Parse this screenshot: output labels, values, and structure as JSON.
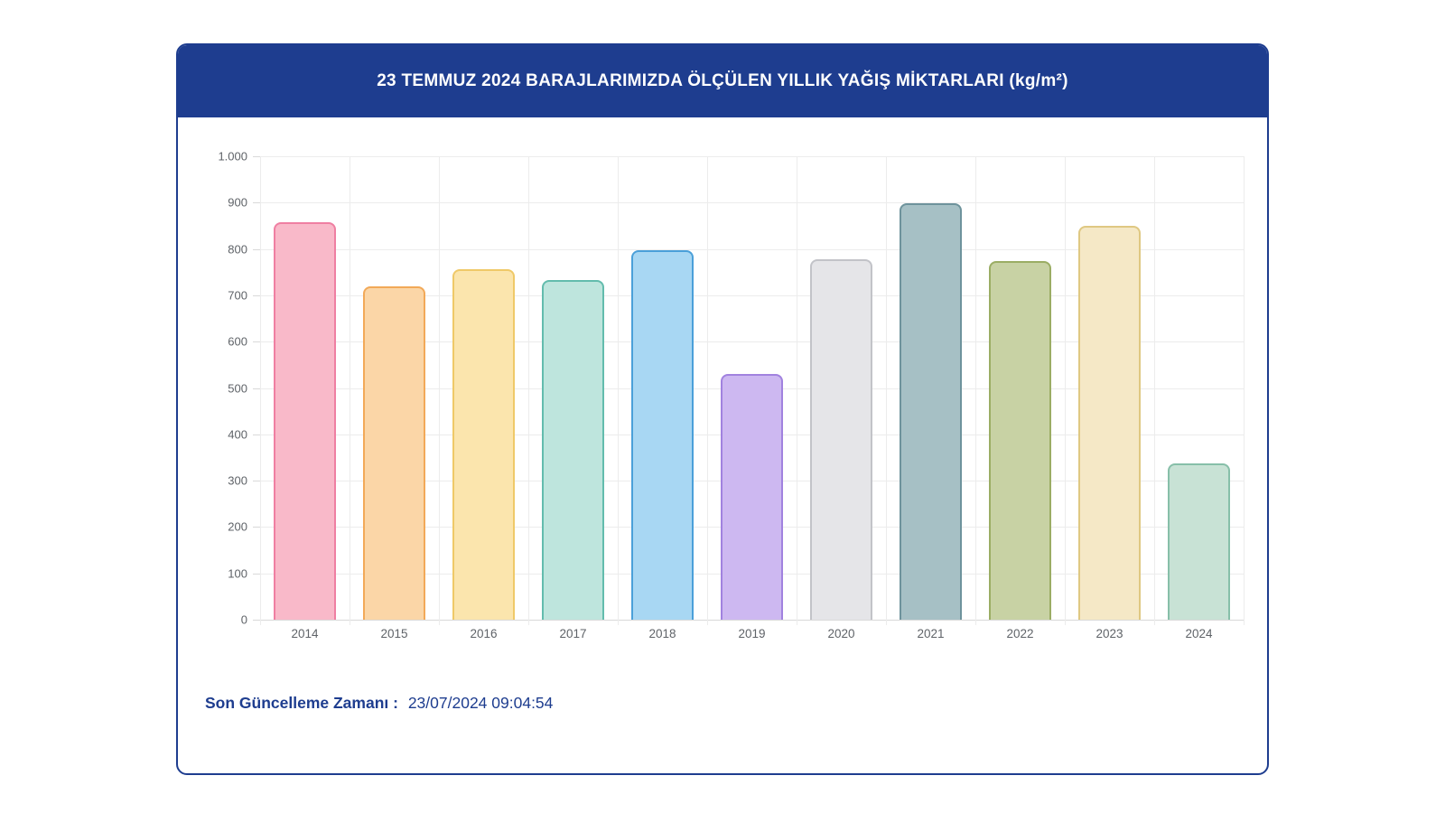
{
  "page": {
    "background": "#ffffff"
  },
  "card": {
    "title": "23 TEMMUZ 2024 BARAJLARIMIZDA ÖLÇÜLEN YILLIK YAĞIŞ MİKTARLARI (kg/m²)",
    "header_bg": "#1E3D8F",
    "border_color": "#1E3D8F"
  },
  "footer": {
    "label": "Son Güncelleme Zamanı :",
    "value": "23/07/2024 09:04:54",
    "color": "#1E3D8F"
  },
  "chart_data": {
    "type": "bar",
    "title": "23 TEMMUZ 2024 BARAJLARIMIZDA ÖLÇÜLEN YILLIK YAĞIŞ MİKTARLARI (kg/m²)",
    "xlabel": "",
    "ylabel": "",
    "categories": [
      "2014",
      "2015",
      "2016",
      "2017",
      "2018",
      "2019",
      "2020",
      "2021",
      "2022",
      "2023",
      "2024"
    ],
    "values": [
      857,
      720,
      757,
      732,
      798,
      531,
      778,
      898,
      774,
      850,
      337
    ],
    "ylim": [
      0,
      1000
    ],
    "ytick_step": 100,
    "ytick_labels": [
      "0",
      "100",
      "200",
      "300",
      "400",
      "500",
      "600",
      "700",
      "800",
      "900",
      "1.000"
    ],
    "grid": true,
    "legend": "none",
    "bar_colors": [
      {
        "fill": "#F9B9C9",
        "border": "#EF7FA2"
      },
      {
        "fill": "#FBD6A7",
        "border": "#F2A958"
      },
      {
        "fill": "#FBE5AD",
        "border": "#EFC968"
      },
      {
        "fill": "#BEE5DD",
        "border": "#63BCAD"
      },
      {
        "fill": "#A8D7F3",
        "border": "#4BA0D9"
      },
      {
        "fill": "#CDB8F1",
        "border": "#A182DF"
      },
      {
        "fill": "#E5E5E8",
        "border": "#C2C3C8"
      },
      {
        "fill": "#A6C0C5",
        "border": "#6E939C"
      },
      {
        "fill": "#C8D2A4",
        "border": "#9BAD64"
      },
      {
        "fill": "#F5E8C6",
        "border": "#DFC882"
      },
      {
        "fill": "#C8E2D5",
        "border": "#87BFA9"
      }
    ],
    "grid_color": "#ececec",
    "axis_label_color": "#5f6368"
  }
}
